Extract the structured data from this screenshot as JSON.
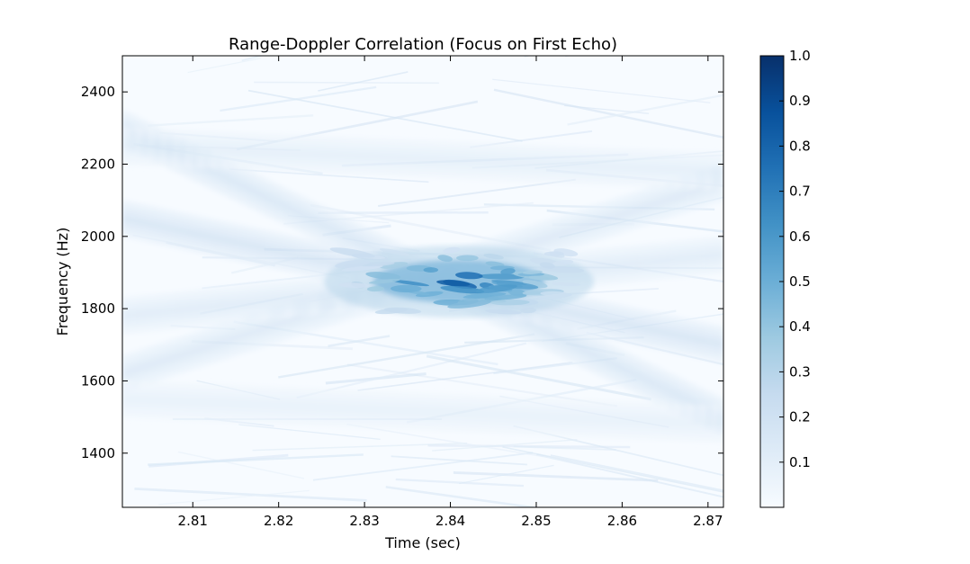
{
  "chart_data": {
    "type": "heatmap",
    "title": "Range-Doppler Correlation (Focus on First Echo)",
    "xlabel": "Time (sec)",
    "ylabel": "Frequency (Hz)",
    "xlim": [
      2.8018,
      2.8718
    ],
    "ylim": [
      1250,
      2500
    ],
    "xticks": [
      2.81,
      2.82,
      2.83,
      2.84,
      2.85,
      2.86,
      2.87
    ],
    "xtick_labels": [
      "2.81",
      "2.82",
      "2.83",
      "2.84",
      "2.85",
      "2.86",
      "2.87"
    ],
    "yticks": [
      1400,
      1600,
      1800,
      2000,
      2200,
      2400
    ],
    "ytick_labels": [
      "1400",
      "1600",
      "1800",
      "2000",
      "2200",
      "2400"
    ],
    "colormap": "Blues",
    "colorbar": {
      "range": [
        0,
        1.0
      ],
      "ticks": [
        0.1,
        0.2,
        0.3,
        0.4,
        0.5,
        0.6,
        0.7,
        0.8,
        0.9,
        1.0
      ],
      "tick_labels": [
        "0.1",
        "0.2",
        "0.3",
        "0.4",
        "0.5",
        "0.6",
        "0.7",
        "0.8",
        "0.9",
        "1.0"
      ]
    },
    "peak": {
      "time": 2.841,
      "frequency": 1875,
      "value": 1.0
    },
    "ridges": [
      {
        "t0": 2.8018,
        "f0": 2300,
        "t1": 2.8718,
        "f1": 1500,
        "strength": 0.22
      },
      {
        "t0": 2.8018,
        "f0": 2050,
        "t1": 2.8718,
        "f1": 1700,
        "strength": 0.25
      },
      {
        "t0": 2.8018,
        "f0": 1620,
        "t1": 2.8718,
        "f1": 2150,
        "strength": 0.2
      },
      {
        "t0": 2.8018,
        "f0": 1780,
        "t1": 2.8718,
        "f1": 1950,
        "strength": 0.18
      },
      {
        "t0": 2.8018,
        "f0": 1550,
        "t1": 2.8718,
        "f1": 1480,
        "strength": 0.12
      },
      {
        "t0": 2.8018,
        "f0": 2250,
        "t1": 2.8718,
        "f1": 2180,
        "strength": 0.14
      }
    ],
    "colors": {
      "low": "#f7fbff",
      "mid": "#6baed6",
      "high": "#08306b"
    }
  }
}
